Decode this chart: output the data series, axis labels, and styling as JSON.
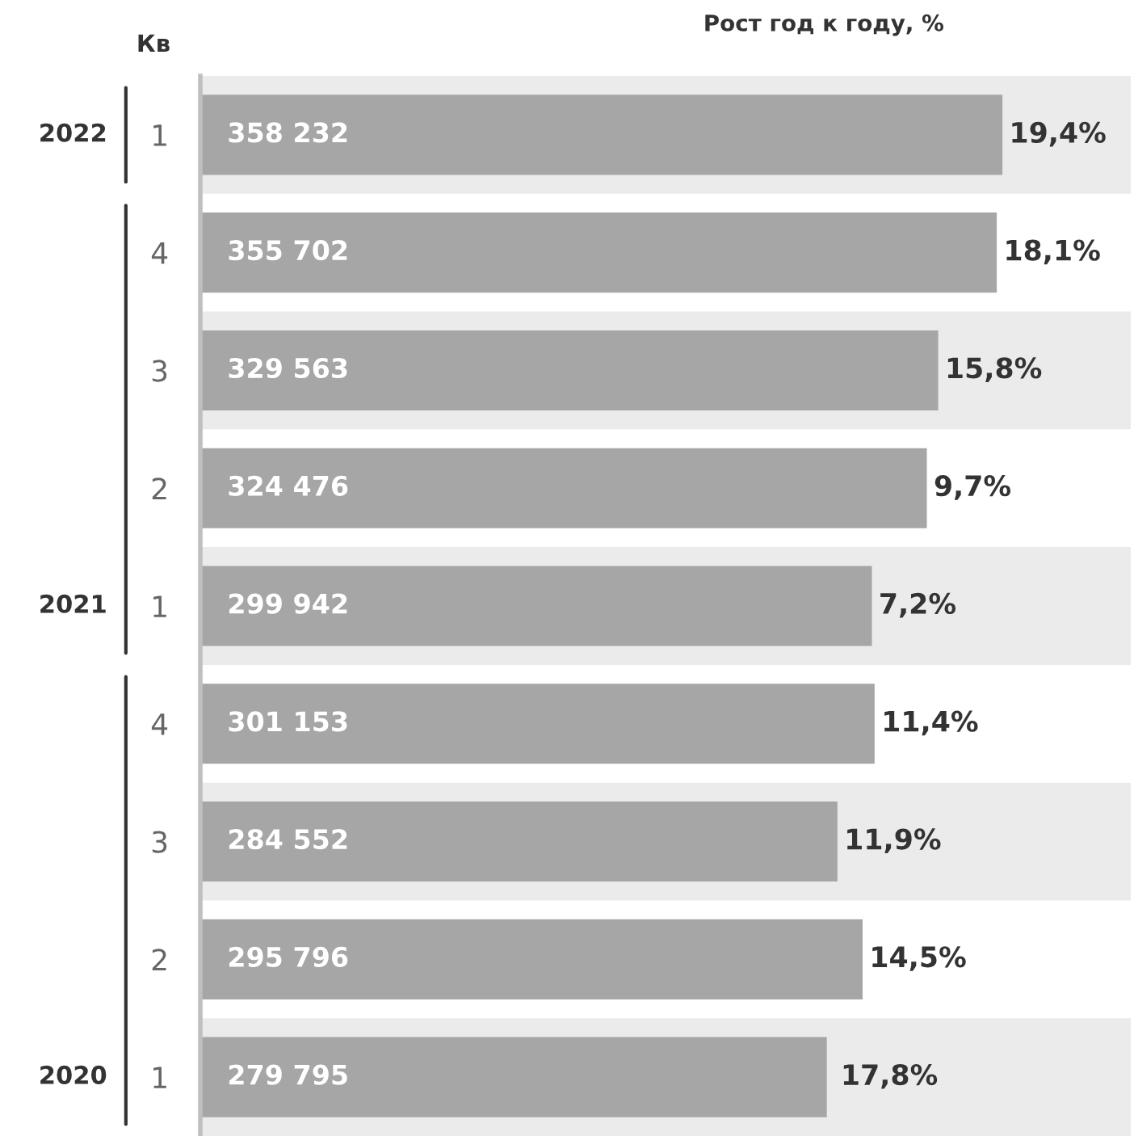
{
  "chart_data": {
    "type": "bar",
    "orientation": "horizontal",
    "title": "Рост год к году, %",
    "ylabel": "Кв",
    "categories": [
      "1",
      "4",
      "3",
      "2",
      "1",
      "4",
      "3",
      "2",
      "1"
    ],
    "values": [
      358232,
      355702,
      329563,
      324476,
      299942,
      301153,
      284552,
      295796,
      279795
    ],
    "value_labels": [
      "358 232",
      "355 702",
      "329 563",
      "324 476",
      "299 942",
      "301 153",
      "284 552",
      "295 796",
      "279 795"
    ],
    "color": "#a6a6a6",
    "tick_labels": "y",
    "grid": false,
    "annotations": [
      "19,4%",
      "18,1%",
      "15,8%",
      "9,7%",
      "7,2%",
      "11,4%",
      "11,9%",
      "14,5%",
      "17,8%",
      "2022",
      "2021",
      "2020"
    ]
  }
}
